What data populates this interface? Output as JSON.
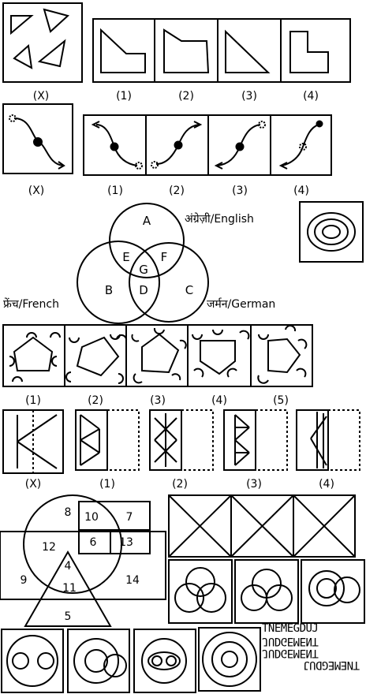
{
  "q1": {
    "labels": [
      "(X)",
      "(1)",
      "(2)",
      "(3)",
      "(4)"
    ]
  },
  "q2": {
    "labels": [
      "(X)",
      "(1)",
      "(2)",
      "(3)",
      "(4)"
    ]
  },
  "venn": {
    "regions": [
      "A",
      "B",
      "C",
      "D",
      "E",
      "F",
      "G"
    ],
    "english": "अंग्रेज़ी/English",
    "french": "फ्रेंच/French",
    "german": "जर्मन/German"
  },
  "q4": {
    "labels": [
      "(1)",
      "(2)",
      "(3)",
      "(4)",
      "(5)"
    ]
  },
  "q5": {
    "labels": [
      "(X)",
      "(1)",
      "(2)",
      "(3)",
      "(4)"
    ]
  },
  "numbers": {
    "values": [
      "8",
      "10",
      "7",
      "12",
      "6",
      "13",
      "4",
      "9",
      "11",
      "14",
      "5"
    ]
  },
  "words": {
    "line1": "TNEMEGDUJ",
    "line2": "JUDGEMENT",
    "line3": "JUDGEMENT",
    "line4": "TNEMEGDUJ"
  }
}
